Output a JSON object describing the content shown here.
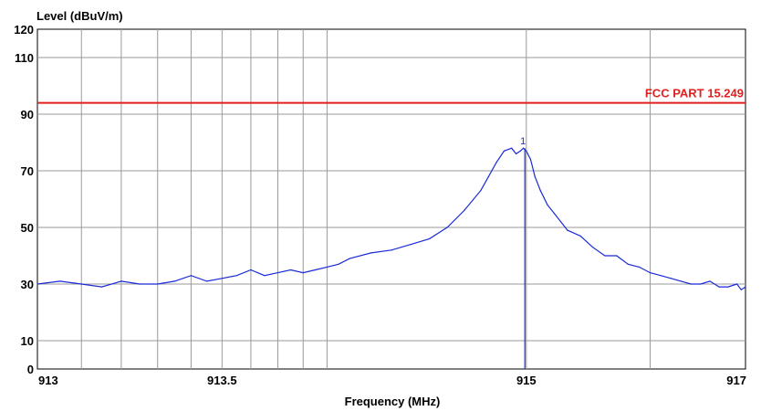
{
  "chart_data": {
    "type": "line",
    "title": "",
    "xlabel": "Frequency (MHz)",
    "ylabel": "Level (dBuV/m)",
    "xlim": [
      913,
      917
    ],
    "ylim": [
      0,
      120
    ],
    "x_scale": "log",
    "x_tick_labels": [
      "913",
      "913.5",
      "915",
      "917"
    ],
    "y_tick_labels": [
      "0",
      "10",
      "30",
      "50",
      "70",
      "90",
      "110",
      "120"
    ],
    "grid": true,
    "limit_line": {
      "name": "FCC PART 15.249",
      "value": 94,
      "color": "#e02020"
    },
    "marker": {
      "label": "1",
      "x": 914.99
    },
    "series": [
      {
        "color": "#1a2bd6",
        "x": [
          913.0,
          913.05,
          913.1,
          913.15,
          913.2,
          913.25,
          913.3,
          913.35,
          913.4,
          913.45,
          913.5,
          913.55,
          913.6,
          913.65,
          913.7,
          913.75,
          913.8,
          913.85,
          913.9,
          913.95,
          914.0,
          914.1,
          914.2,
          914.3,
          914.4,
          914.5,
          914.6,
          914.7,
          914.75,
          914.8,
          914.85,
          914.9,
          914.93,
          914.96,
          914.98,
          915.0,
          915.03,
          915.06,
          915.1,
          915.15,
          915.2,
          915.3,
          915.4,
          915.5,
          915.6,
          915.7,
          915.8,
          915.9,
          916.0,
          916.1,
          916.2,
          916.3,
          916.4,
          916.5,
          916.6,
          916.7,
          916.8,
          916.9,
          916.95,
          917.0
        ],
        "y": [
          30,
          31,
          30,
          29,
          31,
          30,
          30,
          31,
          33,
          31,
          32,
          33,
          35,
          33,
          34,
          35,
          34,
          35,
          36,
          37,
          39,
          41,
          42,
          44,
          46,
          50,
          56,
          63,
          68,
          73,
          77,
          78,
          76,
          77,
          78,
          77,
          74,
          68,
          63,
          58,
          55,
          49,
          47,
          43,
          40,
          40,
          37,
          36,
          34,
          33,
          32,
          31,
          30,
          30,
          31,
          29,
          29,
          30,
          28,
          29
        ]
      }
    ]
  }
}
